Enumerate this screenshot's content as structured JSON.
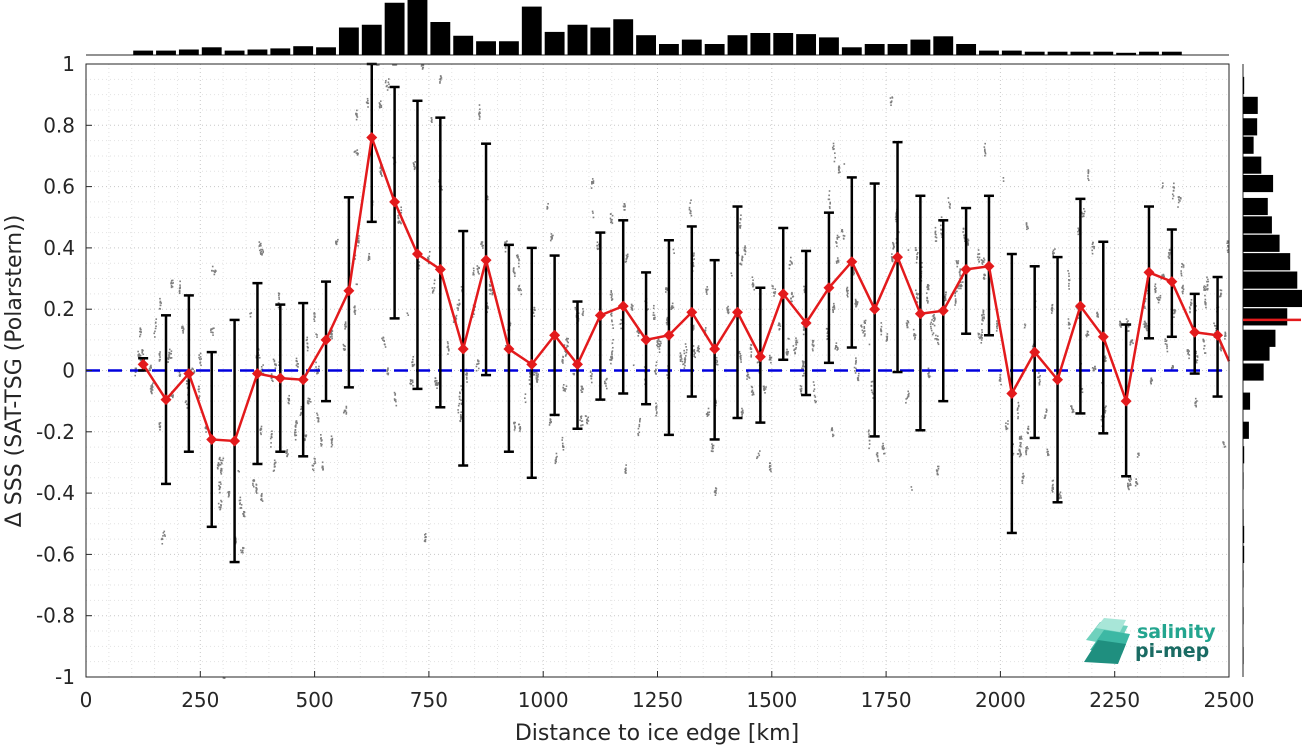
{
  "chart_data": {
    "type": "line",
    "xlabel": "Distance to ice edge [km]",
    "ylabel": "Δ SSS (SAT-TSG (Polarstern))",
    "xlim": [
      0,
      2500
    ],
    "ylim": [
      -1,
      1
    ],
    "xticks": [
      "0",
      "250",
      "500",
      "750",
      "1000",
      "1250",
      "1500",
      "1750",
      "2000",
      "2250",
      "2500"
    ],
    "yticks": [
      "-1",
      "-0.8",
      "-0.6",
      "-0.4",
      "-0.2",
      "0",
      "0.2",
      "0.4",
      "0.6",
      "0.8",
      "1"
    ],
    "grid": true,
    "series": [
      {
        "color": "#e31a1c",
        "marker": "diamond",
        "x": [
          125,
          175,
          225,
          275,
          325,
          375,
          425,
          475,
          525,
          575,
          625,
          675,
          725,
          775,
          825,
          875,
          925,
          975,
          1025,
          1075,
          1125,
          1175,
          1225,
          1275,
          1325,
          1375,
          1425,
          1475,
          1525,
          1575,
          1625,
          1675,
          1725,
          1775,
          1825,
          1875,
          1925,
          1975,
          2025,
          2075,
          2125,
          2175,
          2225,
          2275,
          2325,
          2375,
          2425,
          2475
        ],
        "y": [
          0.02,
          -0.095,
          -0.01,
          -0.225,
          -0.23,
          -0.01,
          -0.025,
          -0.03,
          0.1,
          0.26,
          0.76,
          0.55,
          0.38,
          0.33,
          0.07,
          0.36,
          0.07,
          0.02,
          0.115,
          0.02,
          0.18,
          0.21,
          0.1,
          0.115,
          0.19,
          0.07,
          0.19,
          0.045,
          0.25,
          0.155,
          0.27,
          0.355,
          0.2,
          0.37,
          0.185,
          0.195,
          0.33,
          0.34,
          -0.075,
          0.06,
          -0.03,
          0.21,
          0.11,
          -0.1,
          0.32,
          0.29,
          0.125,
          0.115
        ],
        "err_low": [
          0.0,
          -0.37,
          -0.265,
          -0.51,
          -0.625,
          -0.305,
          -0.265,
          -0.28,
          -0.1,
          -0.055,
          0.485,
          0.17,
          -0.06,
          -0.12,
          -0.31,
          -0.015,
          -0.265,
          -0.35,
          -0.145,
          -0.19,
          -0.095,
          -0.075,
          -0.11,
          -0.21,
          -0.085,
          -0.225,
          -0.155,
          -0.17,
          0.035,
          -0.08,
          0.025,
          0.075,
          -0.215,
          -0.005,
          -0.195,
          -0.1,
          0.12,
          0.115,
          -0.53,
          -0.22,
          -0.43,
          -0.14,
          -0.205,
          -0.345,
          0.105,
          0.11,
          -0.01,
          -0.085
        ],
        "err_high": [
          0.04,
          0.18,
          0.245,
          0.06,
          0.165,
          0.285,
          0.215,
          0.22,
          0.29,
          0.565,
          1.0,
          0.925,
          0.88,
          0.825,
          0.455,
          0.74,
          0.41,
          0.4,
          0.375,
          0.225,
          0.45,
          0.49,
          0.32,
          0.425,
          0.47,
          0.36,
          0.535,
          0.27,
          0.465,
          0.39,
          0.515,
          0.63,
          0.61,
          0.745,
          0.57,
          0.49,
          0.53,
          0.57,
          0.38,
          0.34,
          0.37,
          0.56,
          0.42,
          0.15,
          0.535,
          0.46,
          0.25,
          0.305
        ]
      }
    ],
    "reference_line": {
      "y": 0,
      "color": "#0000dd",
      "style": "dashed"
    },
    "scatter_color": "#7f7f7f",
    "top_histogram": [
      0.08,
      0.08,
      0.1,
      0.14,
      0.08,
      0.1,
      0.12,
      0.16,
      0.14,
      0.5,
      0.55,
      0.95,
      1.0,
      0.6,
      0.35,
      0.25,
      0.25,
      0.88,
      0.42,
      0.55,
      0.5,
      0.65,
      0.36,
      0.2,
      0.28,
      0.2,
      0.36,
      0.4,
      0.4,
      0.38,
      0.32,
      0.14,
      0.2,
      0.2,
      0.28,
      0.34,
      0.2,
      0.08,
      0.08,
      0.06,
      0.06,
      0.06,
      0.06,
      0.04,
      0.06,
      0.06
    ],
    "right_histogram": {
      "bins": [
        0.93,
        0.865,
        0.795,
        0.735,
        0.67,
        0.61,
        0.535,
        0.475,
        0.415,
        0.355,
        0.295,
        0.235,
        0.175,
        0.105,
        0.06,
        -0.005,
        -0.1,
        -0.195,
        -0.275,
        -0.36,
        -0.48,
        -0.535,
        -0.6,
        -0.68,
        -0.8,
        -0.93
      ],
      "counts": [
        0.02,
        0.25,
        0.24,
        0.18,
        0.31,
        0.51,
        0.42,
        0.49,
        0.62,
        0.8,
        0.92,
        1.0,
        0.75,
        0.55,
        0.45,
        0.35,
        0.12,
        0.1,
        0.02,
        0.01,
        0.01,
        0.02,
        0.02,
        0.01,
        0.01,
        0.01
      ],
      "median_line_y": 0.165
    },
    "logo": {
      "line1": "salinity",
      "line2": "pi-mep"
    }
  }
}
